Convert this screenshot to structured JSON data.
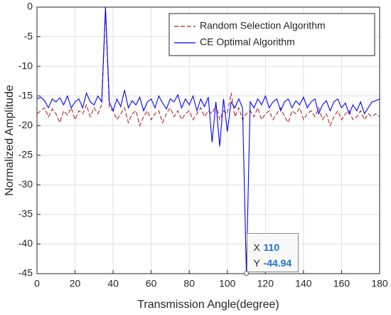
{
  "chart_data": {
    "type": "line",
    "xlabel": "Transmission Angle(degree)",
    "ylabel": "Normalized Amplitude",
    "x": [
      0,
      2,
      4,
      6,
      8,
      10,
      12,
      14,
      16,
      18,
      20,
      22,
      24,
      26,
      28,
      30,
      32,
      34,
      36,
      38,
      40,
      42,
      44,
      46,
      48,
      50,
      52,
      54,
      56,
      58,
      60,
      62,
      64,
      66,
      68,
      70,
      72,
      74,
      76,
      78,
      80,
      82,
      84,
      86,
      88,
      90,
      92,
      94,
      96,
      98,
      100,
      102,
      104,
      106,
      108,
      110,
      112,
      114,
      116,
      118,
      120,
      122,
      124,
      126,
      128,
      130,
      132,
      134,
      136,
      138,
      140,
      142,
      144,
      146,
      148,
      150,
      152,
      154,
      156,
      158,
      160,
      162,
      164,
      166,
      168,
      170,
      172,
      174,
      176,
      178,
      180
    ],
    "series": [
      {
        "name": "Random Selection Algorithm",
        "color": "#b22222",
        "dash": true,
        "values": [
          -18,
          -17.5,
          -17,
          -18.5,
          -17.2,
          -18,
          -19.5,
          -17.5,
          -18.2,
          -17,
          -19,
          -17.5,
          -18,
          -16.5,
          -18.5,
          -17,
          -18,
          -16.5,
          -0.5,
          -17,
          -17.5,
          -19,
          -18,
          -17,
          -19.5,
          -18,
          -17.5,
          -20,
          -18.5,
          -17.5,
          -19,
          -18,
          -17.5,
          -19.5,
          -18,
          -17,
          -18.5,
          -17.5,
          -19,
          -18,
          -17.5,
          -19,
          -18,
          -17,
          -18.5,
          -17.5,
          -18,
          -16.5,
          -19,
          -17.5,
          -18,
          -14.5,
          -18.5,
          -17,
          -19,
          -18,
          -17.5,
          -18.5,
          -17,
          -19,
          -18,
          -17.5,
          -19,
          -18,
          -17,
          -18.5,
          -19.5,
          -17.5,
          -18,
          -17,
          -19,
          -18,
          -17.5,
          -18.5,
          -17,
          -19,
          -18,
          -20,
          -18.5,
          -17.5,
          -19,
          -18,
          -17.5,
          -19,
          -18.5,
          -17.5,
          -19,
          -18,
          -18.5,
          -18,
          -18.5
        ]
      },
      {
        "name": "CE Optimal Algorithm",
        "color": "#0000ff",
        "dash": false,
        "values": [
          -15.5,
          -15.2,
          -15.8,
          -17,
          -15.5,
          -16,
          -15.3,
          -16.5,
          -15,
          -17,
          -16,
          -15.5,
          -17,
          -14.5,
          -16,
          -16.5,
          -15,
          -16,
          0,
          -16,
          -17.5,
          -15.5,
          -16.8,
          -14,
          -17,
          -15.8,
          -16.5,
          -15.2,
          -17.5,
          -16,
          -15.5,
          -17,
          -15,
          -16.2,
          -17.2,
          -15.5,
          -16,
          -14.8,
          -17,
          -15.5,
          -16.5,
          -15,
          -17.5,
          -15.5,
          -16.8,
          -15.2,
          -22.8,
          -16,
          -23.5,
          -15.5,
          -21,
          -16,
          -17,
          -15.5,
          -17,
          -44.94,
          -16,
          -17,
          -15.5,
          -16.5,
          -15,
          -17,
          -16,
          -15.5,
          -17.5,
          -16,
          -15.5,
          -17,
          -15.8,
          -16.5,
          -15.2,
          -17,
          -16,
          -15.5,
          -18,
          -16.5,
          -15.8,
          -17.5,
          -16,
          -15.5,
          -17,
          -16.2,
          -18,
          -16.5,
          -17.5,
          -16,
          -18,
          -17,
          -16,
          -15.8,
          -15.5
        ]
      }
    ],
    "xlim": [
      0,
      180
    ],
    "xticks": [
      0,
      20,
      40,
      60,
      80,
      100,
      120,
      140,
      160,
      180
    ],
    "ylim": [
      -45,
      0
    ],
    "yticks": [
      -45,
      -40,
      -35,
      -30,
      -25,
      -20,
      -15,
      -10,
      -5,
      0
    ],
    "grid": true,
    "legend": "northeast",
    "datatip": {
      "x_label": "X",
      "x": 110,
      "y_label": "Y",
      "y": -44.94
    }
  }
}
